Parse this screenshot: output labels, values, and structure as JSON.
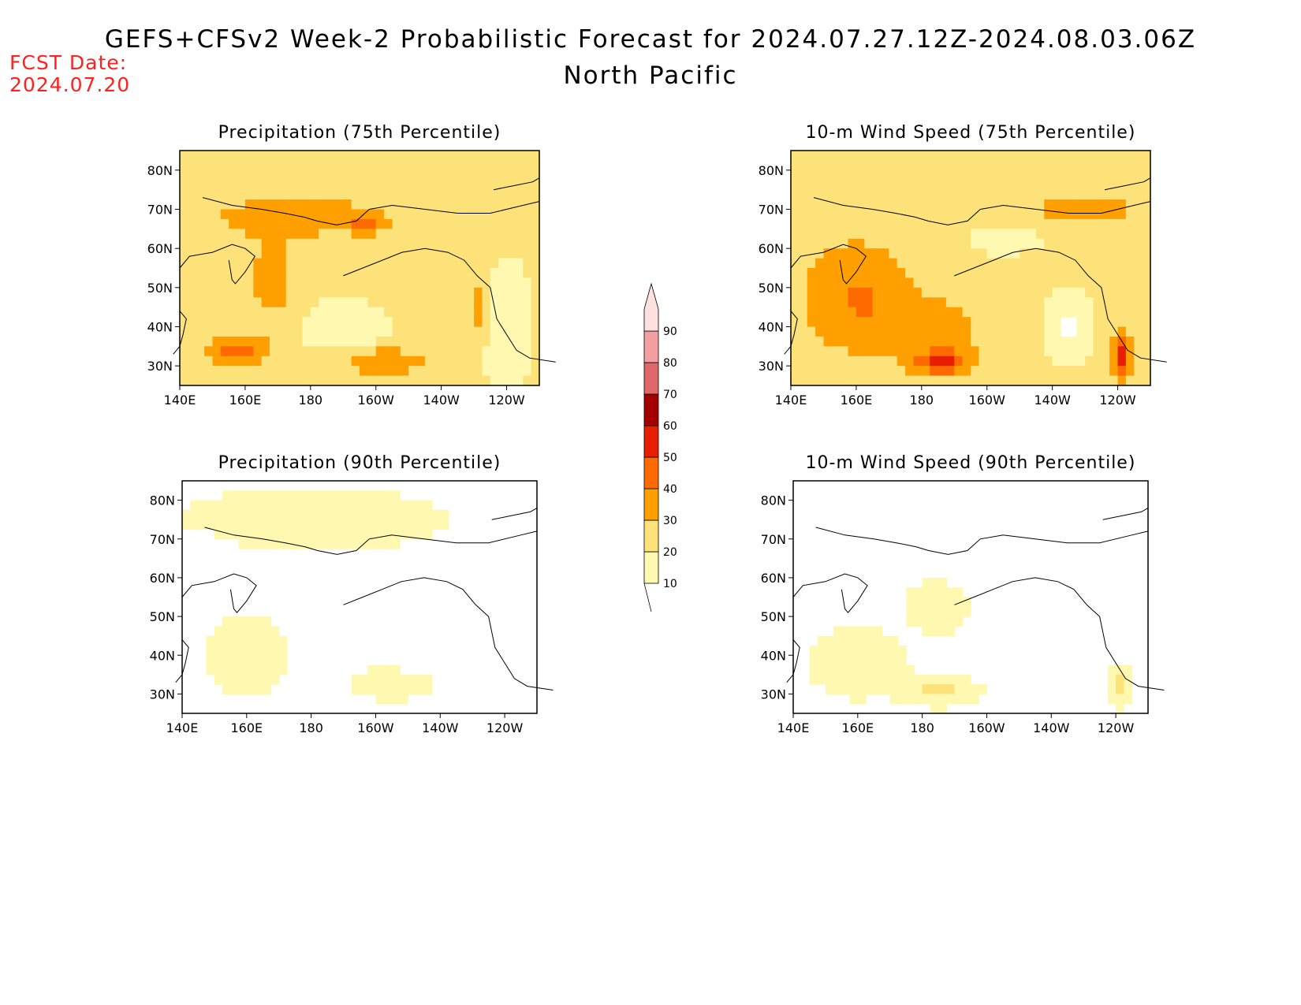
{
  "header": {
    "fcst_line1": "FCST Date:",
    "fcst_line2": "2024.07.20",
    "title": "GEFS+CFSv2 Week-2 Probabilistic Forecast for 2024.07.27.12Z-2024.08.03.06Z",
    "subtitle": "North Pacific"
  },
  "panels": [
    {
      "title": "Precipitation (75th Percentile)",
      "base_level": 20,
      "pattern": "precip75"
    },
    {
      "title": "10-m Wind Speed (75th Percentile)",
      "base_level": 20,
      "pattern": "wind75"
    },
    {
      "title": "Precipitation (90th Percentile)",
      "base_level": 10,
      "pattern": "precip90"
    },
    {
      "title": "10-m Wind Speed (90th Percentile)",
      "base_level": 10,
      "pattern": "wind90"
    }
  ],
  "axes": {
    "x_ticks": [
      "140E",
      "160E",
      "180",
      "160W",
      "140W",
      "120W"
    ],
    "y_ticks": [
      "80N",
      "70N",
      "60N",
      "50N",
      "40N",
      "30N"
    ],
    "lon_range": [
      140,
      250
    ],
    "lat_range": [
      25,
      85
    ]
  },
  "colorbar": {
    "levels": [
      10,
      20,
      30,
      40,
      50,
      60,
      70,
      80,
      90
    ],
    "colors": [
      "#fff8b0",
      "#fde27a",
      "#ffa000",
      "#ff6a00",
      "#e81e00",
      "#a50000",
      "#e06868",
      "#f4a0a0",
      "#ffe0e0"
    ]
  },
  "colors": {
    "fcst_text": "#ff2020",
    "land_unfilled": "#ffffff"
  }
}
